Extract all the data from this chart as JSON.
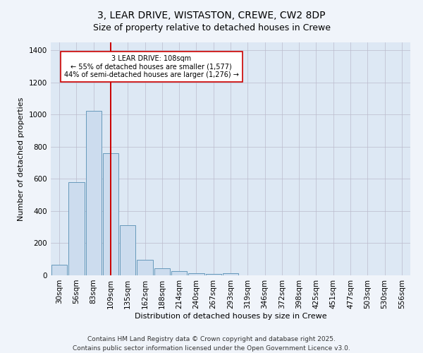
{
  "title": "3, LEAR DRIVE, WISTASTON, CREWE, CW2 8DP",
  "subtitle": "Size of property relative to detached houses in Crewe",
  "xlabel": "Distribution of detached houses by size in Crewe",
  "ylabel": "Number of detached properties",
  "bar_labels": [
    "30sqm",
    "56sqm",
    "83sqm",
    "109sqm",
    "135sqm",
    "162sqm",
    "188sqm",
    "214sqm",
    "240sqm",
    "267sqm",
    "293sqm",
    "319sqm",
    "346sqm",
    "372sqm",
    "398sqm",
    "425sqm",
    "451sqm",
    "477sqm",
    "503sqm",
    "530sqm",
    "556sqm"
  ],
  "bar_values": [
    65,
    580,
    1025,
    760,
    310,
    95,
    45,
    25,
    15,
    10,
    13,
    0,
    0,
    0,
    0,
    0,
    0,
    0,
    0,
    0,
    0
  ],
  "bar_color": "#ccdcee",
  "bar_edge_color": "#6699bb",
  "vline_x": 3,
  "vline_color": "#cc0000",
  "annotation_text": "3 LEAR DRIVE: 108sqm\n← 55% of detached houses are smaller (1,577)\n44% of semi-detached houses are larger (1,276) →",
  "annotation_box_facecolor": "#ffffff",
  "annotation_box_edgecolor": "#cc0000",
  "ylim": [
    0,
    1450
  ],
  "yticks": [
    0,
    200,
    400,
    600,
    800,
    1000,
    1200,
    1400
  ],
  "grid_color": "#bbbbcc",
  "bg_color": "#dde8f4",
  "fig_bg_color": "#f0f4fa",
  "footer_line1": "Contains HM Land Registry data © Crown copyright and database right 2025.",
  "footer_line2": "Contains public sector information licensed under the Open Government Licence v3.0.",
  "title_fontsize": 10,
  "subtitle_fontsize": 9,
  "axis_label_fontsize": 8,
  "tick_fontsize": 7.5,
  "annotation_fontsize": 7,
  "footer_fontsize": 6.5
}
